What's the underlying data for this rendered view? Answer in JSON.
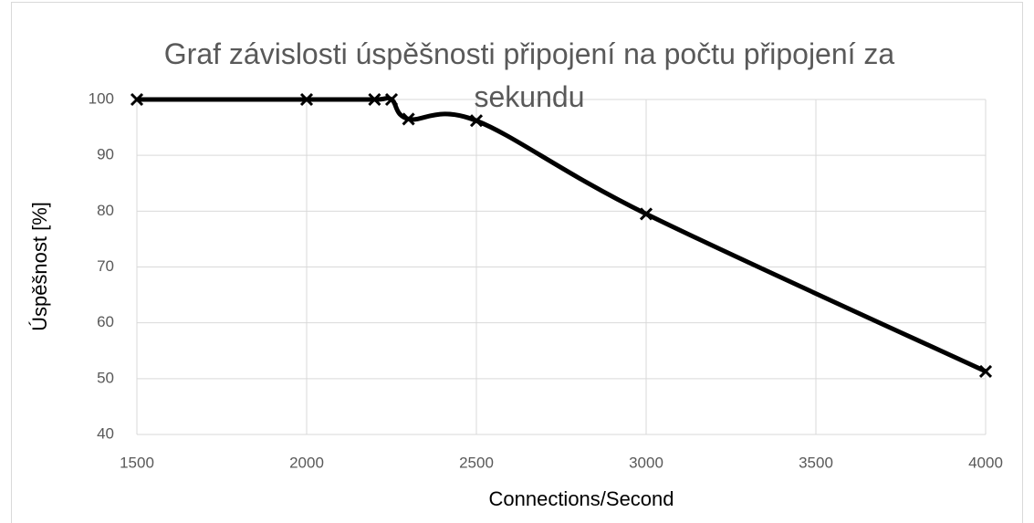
{
  "chart_data": {
    "type": "line",
    "title": "Graf závislosti úspěšnosti připojení na počtu připojení za sekundu",
    "x_label": "Connections/Second",
    "y_label": "Úspěšnost [%]",
    "x": [
      1500,
      2000,
      2200,
      2250,
      2300,
      2500,
      3000,
      4000
    ],
    "series": [
      {
        "name": "Úspěšnost",
        "color": "#000000",
        "values": [
          100,
          100,
          100,
          100,
          96.5,
          96.2,
          79.5,
          51.3
        ]
      }
    ],
    "xlim": [
      1500,
      4000
    ],
    "xticks": [
      1500,
      2000,
      2500,
      3000,
      3500,
      4000
    ],
    "ylim": [
      40,
      100
    ],
    "yticks": [
      40,
      50,
      60,
      70,
      80,
      90,
      100
    ],
    "grid": true,
    "smooth": true,
    "marker": "x"
  }
}
